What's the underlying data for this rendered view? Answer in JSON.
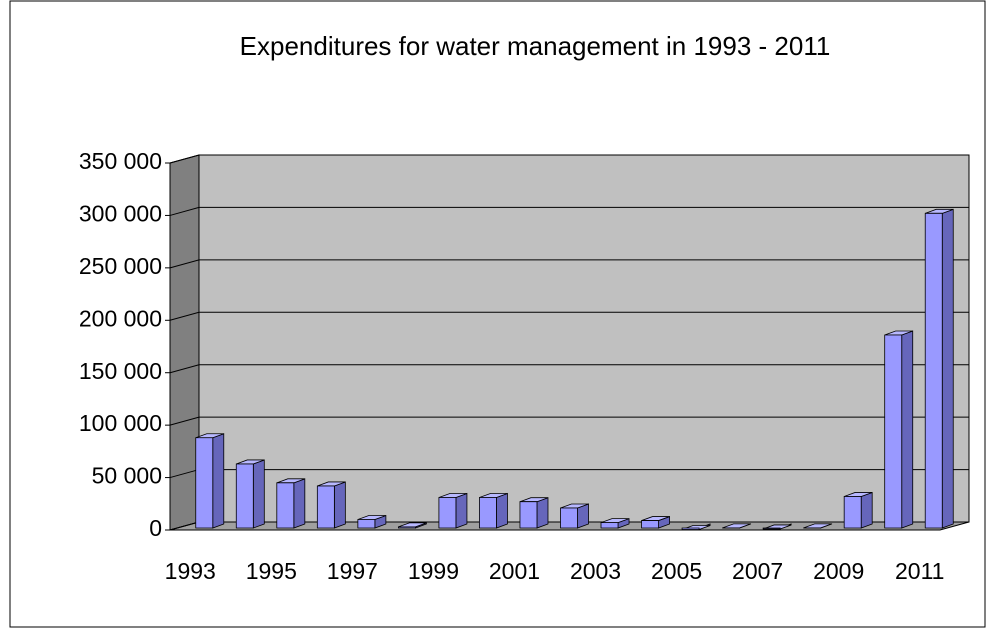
{
  "chart_data": {
    "type": "bar3d",
    "title": "Expenditures for water management in 1993 - 2011",
    "categories": [
      "1993",
      null,
      "1995",
      null,
      "1997",
      null,
      "1999",
      null,
      "2001",
      null,
      "2003",
      null,
      "2005",
      null,
      "2007",
      null,
      "2009",
      null,
      "2011"
    ],
    "values": [
      88000,
      63000,
      45000,
      42000,
      10000,
      3000,
      31000,
      31000,
      27000,
      21000,
      7000,
      9000,
      500,
      2000,
      1000,
      2000,
      32000,
      186000,
      302000
    ],
    "color": "#9999ff",
    "ylim": [
      0,
      350000
    ],
    "yticks": [
      0,
      {
        "value": 50000,
        "label": "50 000"
      },
      {
        "value": 100000,
        "label": "100 000"
      },
      {
        "value": 150000,
        "label": "150 000"
      },
      {
        "value": 200000,
        "label": "200 000"
      },
      {
        "value": 250000,
        "label": "250 000"
      },
      {
        "value": 300000,
        "label": "300 000"
      },
      {
        "value": 350000,
        "label": "350 000"
      }
    ],
    "grid": true
  }
}
